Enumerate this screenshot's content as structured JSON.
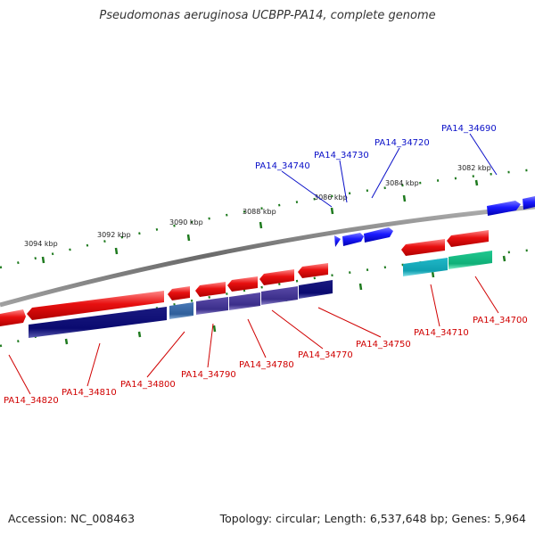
{
  "title": "Pseudomonas aeruginosa UCBPP-PA14, complete genome",
  "footer": {
    "accession": "Accession: NC_008463",
    "topology": "Topology: circular; Length: 6,537,648 bp; Genes: 5,964"
  },
  "colors": {
    "backbone": "#8a8a8a",
    "tick": "#1e7a1e",
    "forward_gene": "#1a1aff",
    "reverse_gene": "#e01010",
    "forward_label": "#0a10c8",
    "reverse_label": "#d00000"
  },
  "ticks": [
    {
      "label": "3082 kbp"
    },
    {
      "label": "3084 kbp"
    },
    {
      "label": "3086 kbp"
    },
    {
      "label": "3088 kbp"
    },
    {
      "label": "3090 kbp"
    },
    {
      "label": "3092 kbp"
    },
    {
      "label": "3094 kbp"
    }
  ],
  "forward_genes": [
    {
      "name": "PA14_34690"
    },
    {
      "name": "PA14_34720"
    },
    {
      "name": "PA14_34730"
    },
    {
      "name": "PA14_34740"
    }
  ],
  "reverse_genes": [
    {
      "name": "PA14_34700"
    },
    {
      "name": "PA14_34710"
    },
    {
      "name": "PA14_34750"
    },
    {
      "name": "PA14_34770"
    },
    {
      "name": "PA14_34780"
    },
    {
      "name": "PA14_34790"
    },
    {
      "name": "PA14_34800"
    },
    {
      "name": "PA14_34810"
    },
    {
      "name": "PA14_34820"
    }
  ]
}
